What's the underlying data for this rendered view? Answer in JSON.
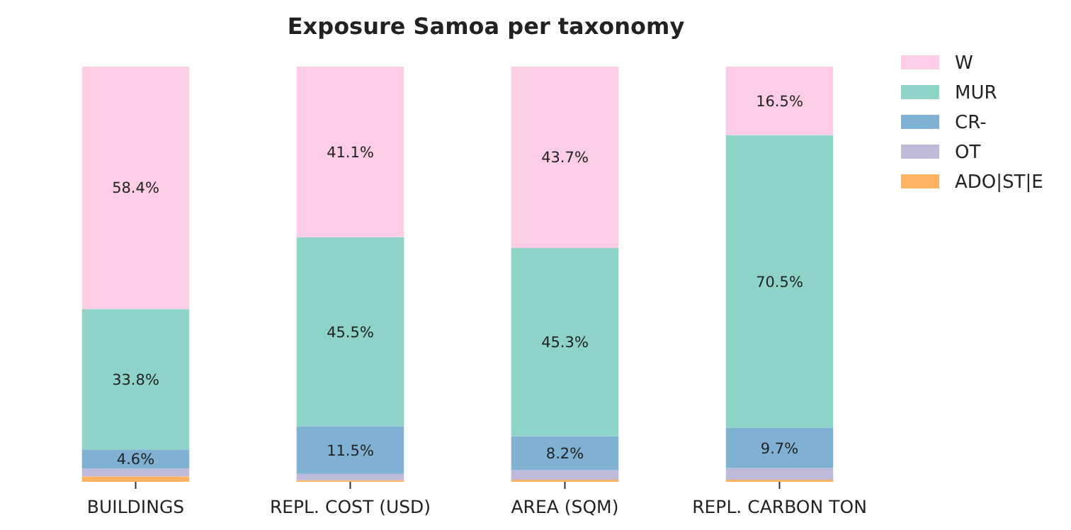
{
  "chart_data": {
    "type": "bar",
    "title": "Exposure Samoa per taxonomy",
    "stacked": true,
    "categories": [
      "BUILDINGS",
      "REPL. COST (USD)",
      "AREA (SQM)",
      "REPL. CARBON TON"
    ],
    "ylim": [
      0,
      100
    ],
    "tick_labels": "x",
    "legend": "top right",
    "series": [
      {
        "name": "ADO|ST|E",
        "color": "#fdb462",
        "values": [
          1.3,
          0.4,
          0.5,
          0.5
        ]
      },
      {
        "name": "OT",
        "color": "#bebada",
        "values": [
          1.9,
          1.5,
          2.3,
          2.8
        ]
      },
      {
        "name": "CR-",
        "color": "#80b1d3",
        "values": [
          4.6,
          11.5,
          8.2,
          9.7
        ],
        "value_labels": [
          "4.6%",
          "11.5%",
          "8.2%",
          "9.7%"
        ]
      },
      {
        "name": "MUR",
        "color": "#8dd3c7",
        "values": [
          33.8,
          45.5,
          45.3,
          70.5
        ],
        "value_labels": [
          "33.8%",
          "45.5%",
          "45.3%",
          "70.5%"
        ]
      },
      {
        "name": "W",
        "color": "#fccde5",
        "values": [
          58.4,
          41.1,
          43.7,
          16.5
        ],
        "value_labels": [
          "58.4%",
          "41.1%",
          "43.7%",
          "16.5%"
        ]
      }
    ]
  }
}
